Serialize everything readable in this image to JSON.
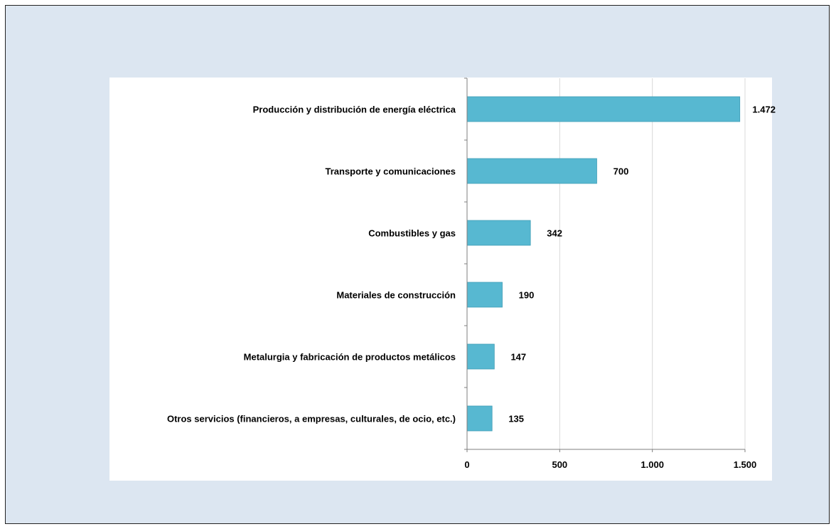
{
  "chart_data": {
    "type": "bar",
    "orientation": "horizontal",
    "title": "",
    "xlabel": "",
    "ylabel": "",
    "categories": [
      "Producción y distribución de energía eléctrica",
      "Transporte y comunicaciones",
      "Combustibles y gas",
      "Materiales de construcción",
      "Metalurgia y fabricación de productos metálicos",
      "Otros servicios (financieros, a empresas, culturales, de ocio, etc.)"
    ],
    "values": [
      1472,
      700,
      342,
      190,
      147,
      135
    ],
    "value_labels": [
      "1.472",
      "700",
      "342",
      "190",
      "147",
      "135"
    ],
    "xlim": [
      0,
      1500
    ],
    "xticks": [
      0,
      500,
      1000,
      1500
    ],
    "xtick_labels": [
      "0",
      "500",
      "1.000",
      "1.500"
    ],
    "grid": "vertical",
    "legend": "none",
    "colors": {
      "bar": "#57b8d1",
      "bar_stroke": "#3f9db6",
      "grid": "#d9d9d9",
      "axis": "#7f7f7f",
      "background": "#dce6f1",
      "plot_background": "#ffffff"
    }
  }
}
